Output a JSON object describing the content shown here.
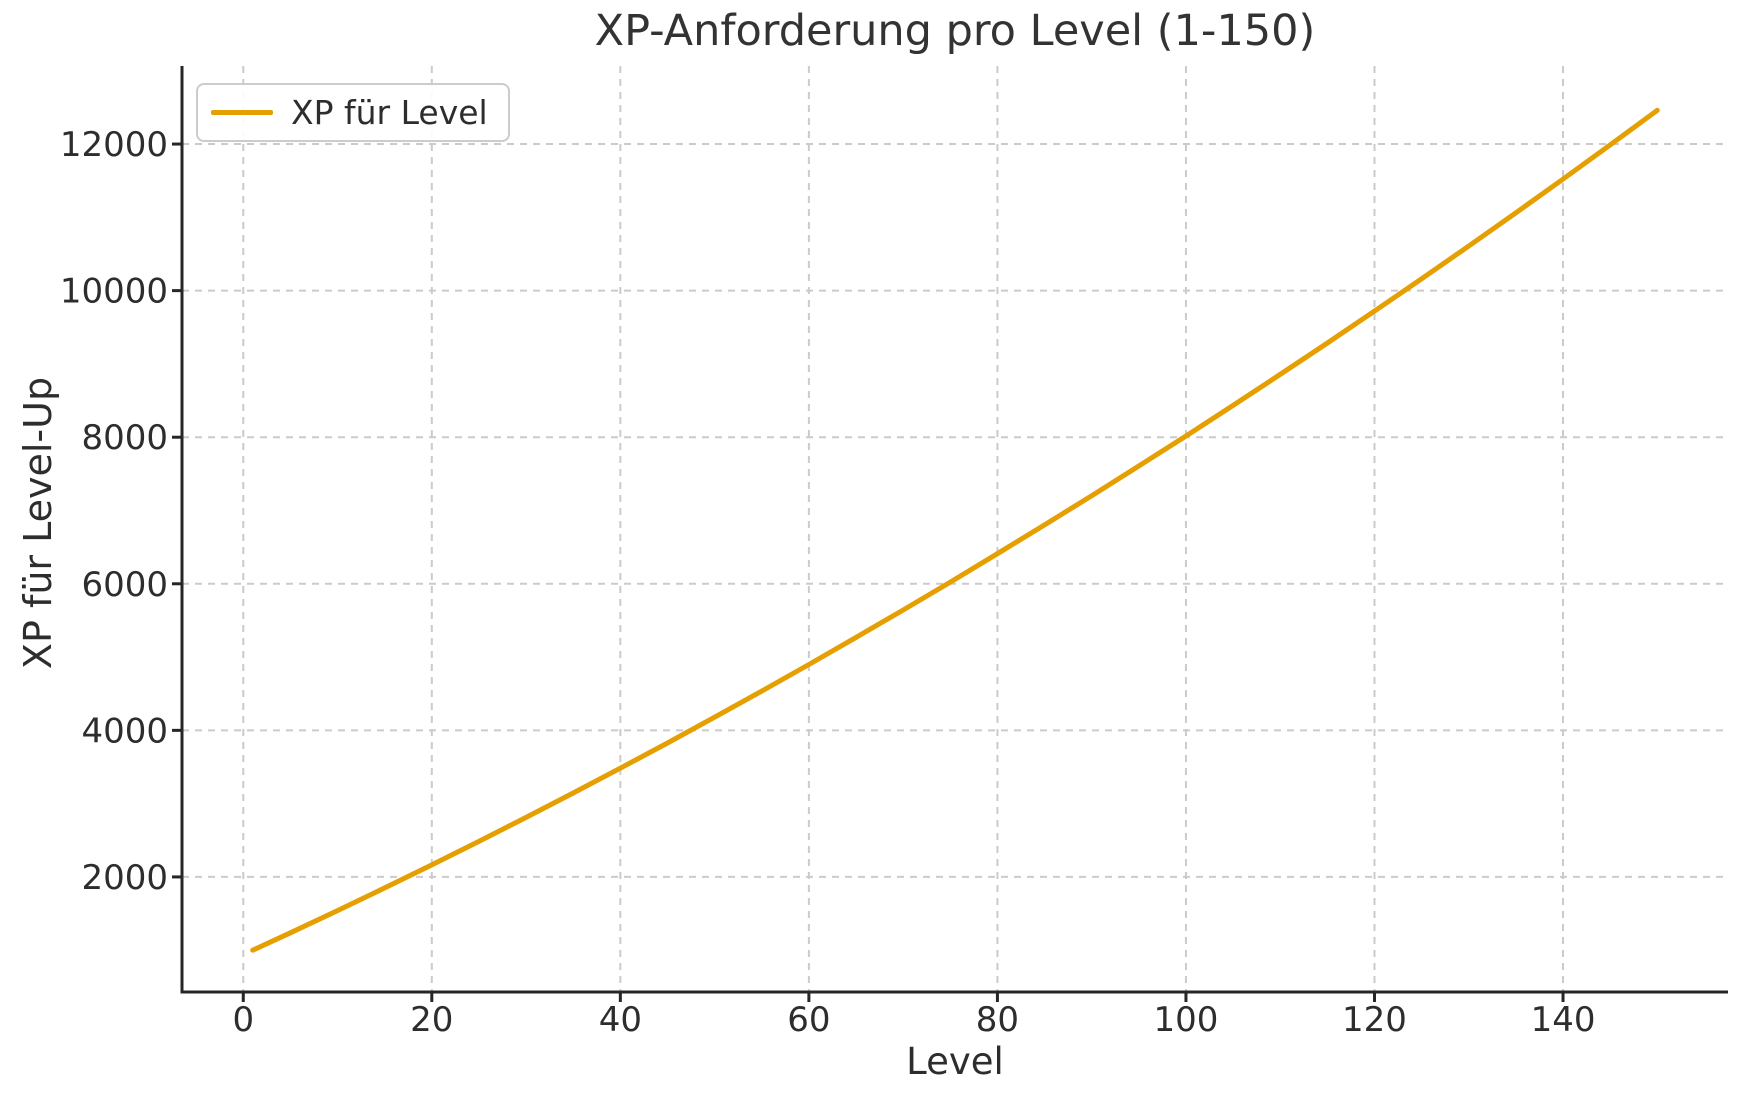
{
  "chart_data": {
    "type": "line",
    "title": "XP-Anforderung pro Level (1-150)",
    "xlabel": "Level",
    "ylabel": "XP für Level-Up",
    "grid": true,
    "grid_style": "dashed",
    "legend_position": "upper left",
    "x_ticks": [
      0,
      20,
      40,
      60,
      80,
      100,
      120,
      140
    ],
    "y_ticks": [
      2000,
      4000,
      6000,
      8000,
      10000,
      12000
    ],
    "xlim": [
      -6.5,
      157.5
    ],
    "ylim": [
      430,
      13065
    ],
    "x_range_levels": [
      1,
      150
    ],
    "series": [
      {
        "name": "XP für Level",
        "color": "#E69F00",
        "x": [
          1,
          5,
          10,
          15,
          20,
          25,
          30,
          35,
          40,
          45,
          50,
          55,
          60,
          65,
          70,
          75,
          80,
          85,
          90,
          95,
          100,
          105,
          110,
          115,
          120,
          125,
          130,
          135,
          140,
          145,
          150
        ],
        "y": [
          1000,
          1238,
          1541,
          1850,
          2164,
          2485,
          2812,
          3145,
          3484,
          3828,
          4179,
          4536,
          4899,
          5268,
          5642,
          6023,
          6410,
          6803,
          7202,
          7607,
          8017,
          8434,
          8857,
          9286,
          9721,
          10161,
          10609,
          11062,
          11522,
          11988,
          12460
        ]
      }
    ]
  },
  "style": {
    "background": "#ffffff",
    "line_color": "#E69F00",
    "grid_color": "#cbcbcb",
    "axis_color": "#262626",
    "text_color": "#2d2d2d",
    "title_color": "#333333"
  }
}
